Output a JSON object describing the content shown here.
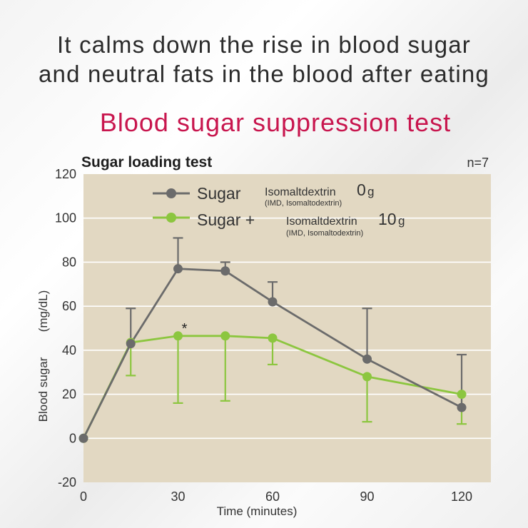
{
  "header": {
    "line1": "It calms down the rise in blood sugar",
    "line2": "and neutral fats in the blood after eating",
    "subtitle": "Blood sugar suppression test"
  },
  "chart_data": {
    "type": "line",
    "title": "Sugar loading test",
    "note": "n=7",
    "xlabel": "Time (minutes)",
    "ylabel": "Blood sugar",
    "ylabel_unit": "(mg/dL)",
    "xlim": [
      0,
      120
    ],
    "ylim": [
      -20,
      120
    ],
    "x_ticks": [
      0,
      30,
      60,
      90,
      120
    ],
    "y_ticks": [
      -20,
      0,
      20,
      40,
      60,
      80,
      100,
      120
    ],
    "grid": true,
    "legend_position": "top-left",
    "significance_mark": {
      "x": 30,
      "label": "*"
    },
    "series": [
      {
        "name": "Sugar",
        "legend_text": "Isomaltdextrin",
        "legend_amount": "0",
        "legend_unit": "g",
        "legend_note": "(IMD, Isomaltodextrin)",
        "color": "#6b6b6b",
        "x": [
          0,
          15,
          30,
          45,
          60,
          90,
          120
        ],
        "y": [
          0,
          43,
          77,
          76,
          62,
          36,
          14
        ],
        "error_upper": [
          0,
          59,
          91,
          80,
          71,
          59,
          38
        ],
        "error_lower": [
          0,
          43,
          77,
          76,
          62,
          36,
          14
        ]
      },
      {
        "name": "Sugar +",
        "legend_text": "Isomaltdextrin",
        "legend_amount": "10",
        "legend_unit": "g",
        "legend_note": "(IMD, Isomaltodextrin)",
        "color": "#8cc63f",
        "x": [
          0,
          15,
          30,
          45,
          60,
          90,
          120
        ],
        "y": [
          0,
          43.5,
          46.5,
          46.5,
          45.5,
          28,
          20
        ],
        "error_upper": [
          0,
          43.5,
          46.5,
          46.5,
          45.5,
          28,
          20
        ],
        "error_lower": [
          0,
          28.5,
          16,
          17,
          33.5,
          7.5,
          6.5
        ]
      }
    ]
  }
}
